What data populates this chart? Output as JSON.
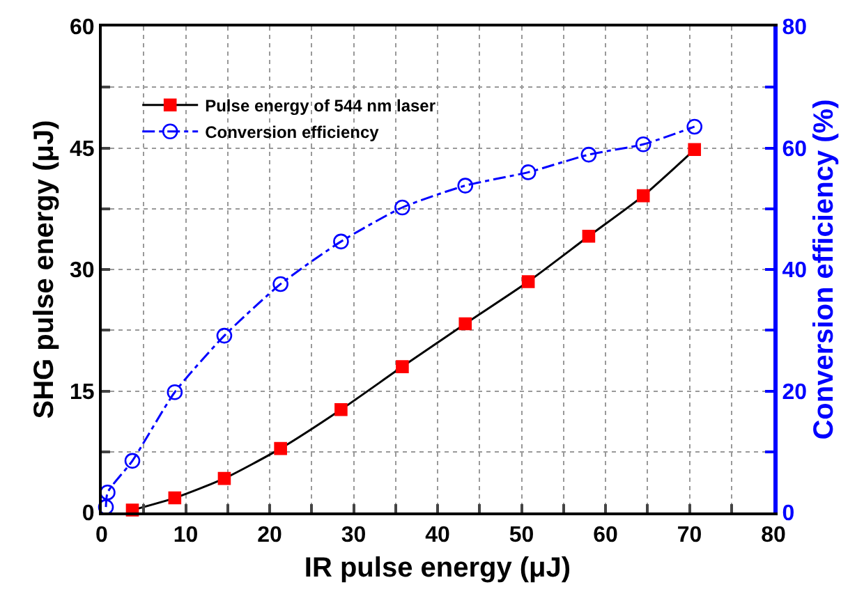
{
  "chart_data": {
    "type": "line",
    "xlabel": "IR pulse energy (μJ)",
    "ylabel": "SHG pulse energy (μJ)",
    "y2label": "Conversion efficiency (%)",
    "series": [
      {
        "name": "Pulse energy of 544 nm laser",
        "color": "#ff0000",
        "marker": "square",
        "line_style": "solid",
        "x": [
          3.65,
          8.7,
          14.6,
          21.3,
          28.5,
          35.8,
          43.3,
          50.8,
          58.0,
          64.5,
          70.6
        ],
        "values": [
          0.3,
          1.8,
          4.2,
          7.9,
          12.7,
          18.0,
          23.3,
          28.5,
          34.1,
          39.1,
          44.8
        ]
      },
      {
        "name": "Conversion efficiency",
        "color": "#0000ff",
        "marker": "circle",
        "line_style": "dashed",
        "axis": "y2",
        "x": [
          0.5,
          0.7,
          3.65,
          8.7,
          14.6,
          21.3,
          28.5,
          35.8,
          43.3,
          50.8,
          58.0,
          64.5,
          70.6
        ],
        "values": [
          0.9,
          3.3,
          8.5,
          19.8,
          29.1,
          37.6,
          44.6,
          50.2,
          53.8,
          56.0,
          58.9,
          60.6,
          63.5
        ]
      }
    ],
    "xlim": [
      0,
      80
    ],
    "xticks": [
      0,
      {
        "value": 5,
        "label": null
      },
      10,
      {
        "value": 15,
        "label": null
      },
      20,
      {
        "value": 25,
        "label": null
      },
      30,
      {
        "value": 35,
        "label": null
      },
      40,
      {
        "value": 45,
        "label": null
      },
      50,
      {
        "value": 55,
        "label": null
      },
      60,
      {
        "value": 65,
        "label": null
      },
      70,
      {
        "value": 75,
        "label": null
      },
      80
    ],
    "ylim": [
      0,
      60
    ],
    "yticks": [
      0,
      {
        "value": 7.5,
        "label": null
      },
      15,
      {
        "value": 22.5,
        "label": null
      },
      30,
      {
        "value": 37.5,
        "label": null
      },
      45,
      {
        "value": 52.5,
        "label": null
      },
      60
    ],
    "y2lim": [
      0,
      80
    ],
    "y2ticks": [
      0,
      {
        "value": 10,
        "label": null
      },
      20,
      {
        "value": 30,
        "label": null
      },
      40,
      {
        "value": 50,
        "label": null
      },
      60,
      {
        "value": 70,
        "label": null
      },
      80
    ],
    "grid": true,
    "legend": "top left"
  }
}
